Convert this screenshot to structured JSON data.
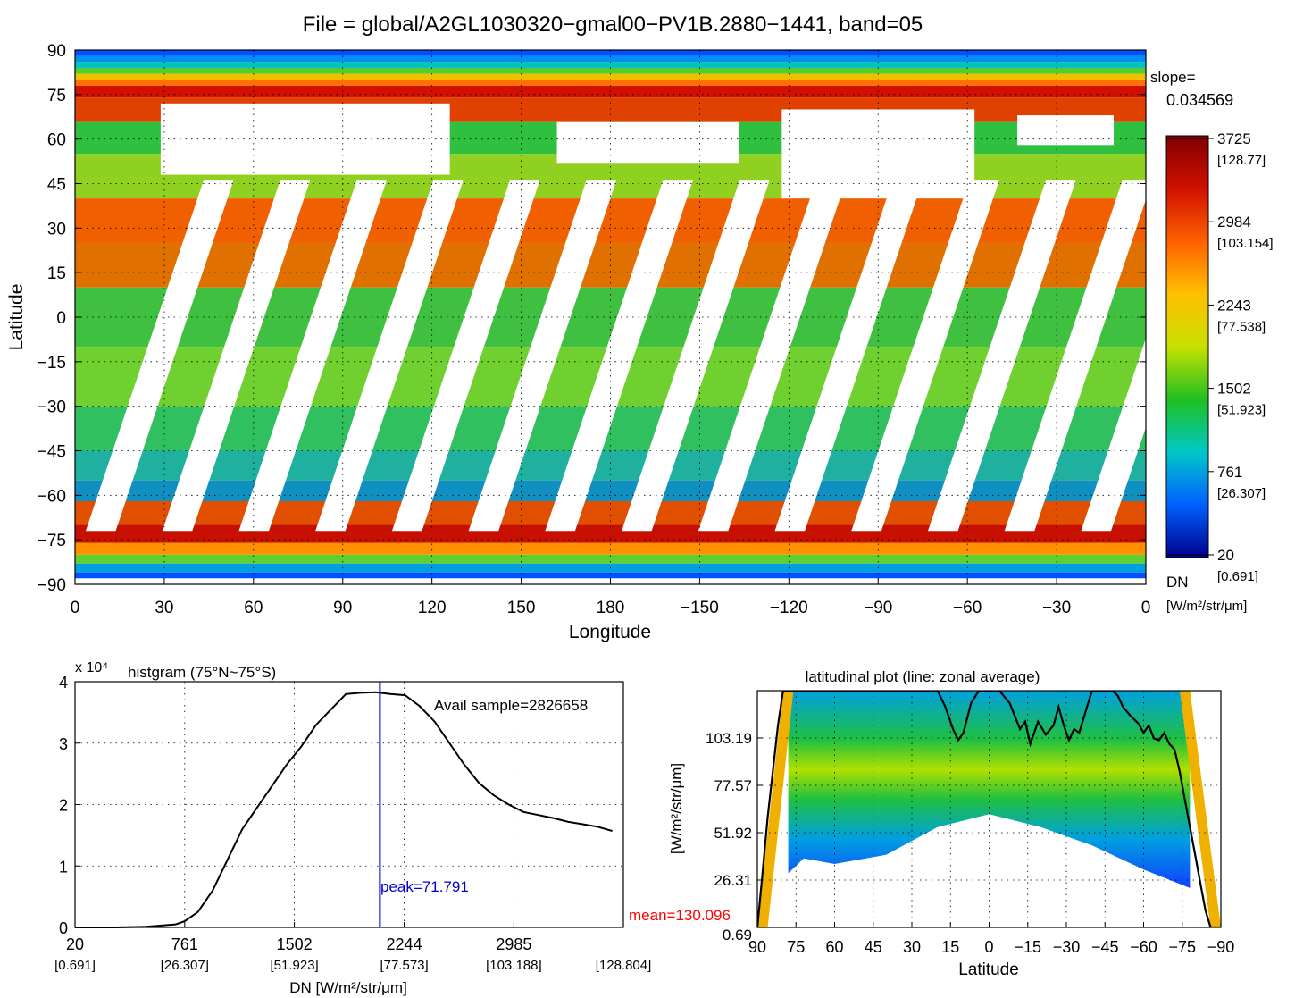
{
  "figure_title": "File = global/A2GL1030320−gmal00−PV1B.2880−1441, band=05",
  "chart_data": [
    {
      "type": "heatmap",
      "title": "File = global/A2GL1030320−gmal00−PV1B.2880−1441, band=05",
      "xlabel": "Longitude",
      "ylabel": "Latitude",
      "x_ticks": [
        "0",
        "30",
        "60",
        "90",
        "120",
        "150",
        "180",
        "−150",
        "−120",
        "−90",
        "−60",
        "−30",
        "0"
      ],
      "y_ticks": [
        "90",
        "75",
        "60",
        "45",
        "30",
        "15",
        "0",
        "−15",
        "−30",
        "−45",
        "−60",
        "−75",
        "−90"
      ],
      "grid": true,
      "slope_label": "slope=",
      "slope_value": "0.034569",
      "colorbar": {
        "ticks": [
          {
            "dn": "3725",
            "rad": "[128.77]"
          },
          {
            "dn": "2984",
            "rad": "[103.154]"
          },
          {
            "dn": "2243",
            "rad": "[77.538]"
          },
          {
            "dn": "1502",
            "rad": "[51.923]"
          },
          {
            "dn": "761",
            "rad": "[26.307]"
          },
          {
            "dn": "20",
            "rad": "[0.691]"
          }
        ],
        "label_dn": "DN",
        "label_units": "[W/m²/str/μm]",
        "colors": [
          "#00008f",
          "#0060ff",
          "#00c8c8",
          "#20c020",
          "#c8e000",
          "#ffc000",
          "#ff6000",
          "#d01000",
          "#800000"
        ]
      }
    },
    {
      "type": "line",
      "title": "histgram (75°N~75°S)",
      "multiplier_label": "x 10⁴",
      "xlabel": "DN [W/m²/str/μm]",
      "x_ticks": [
        {
          "dn": "20",
          "rad": "[0.691]"
        },
        {
          "dn": "761",
          "rad": "[26.307]"
        },
        {
          "dn": "1502",
          "rad": "[51.923]"
        },
        {
          "dn": "2244",
          "rad": "[77.573]"
        },
        {
          "dn": "2985",
          "rad": "[103.188]"
        },
        {
          "dn": "",
          "rad": "[128.804]"
        }
      ],
      "y_ticks": [
        "0",
        "1",
        "2",
        "3",
        "4"
      ],
      "xlim": [
        20,
        3725
      ],
      "ylim": [
        0,
        4
      ],
      "grid": true,
      "annotation_samples": "Avail sample=2826658",
      "annotation_peak": "peak=71.791",
      "annotation_mean": "mean=130.096",
      "peak_dn": 2080,
      "series": [
        {
          "x": [
            20,
            300,
            500,
            700,
            761,
            850,
            950,
            1050,
            1150,
            1250,
            1350,
            1450,
            1550,
            1650,
            1750,
            1850,
            1950,
            2050,
            2150,
            2250,
            2350,
            2450,
            2550,
            2650,
            2750,
            2850,
            2950,
            3050,
            3150,
            3250,
            3350,
            3450,
            3550,
            3650
          ],
          "y": [
            0,
            0,
            0.01,
            0.05,
            0.1,
            0.25,
            0.6,
            1.1,
            1.6,
            1.95,
            2.3,
            2.65,
            2.95,
            3.3,
            3.55,
            3.8,
            3.82,
            3.83,
            3.8,
            3.78,
            3.6,
            3.35,
            3.0,
            2.65,
            2.35,
            2.15,
            2.0,
            1.88,
            1.83,
            1.78,
            1.72,
            1.68,
            1.64,
            1.57
          ]
        }
      ]
    },
    {
      "type": "heatmap",
      "title": "latitudinal plot (line: zonal average)",
      "xlabel": "Latitude",
      "ylabel": "[W/m²/str/μm]",
      "x_ticks": [
        "90",
        "75",
        "60",
        "45",
        "30",
        "15",
        "0",
        "−15",
        "−30",
        "−45",
        "−60",
        "−75",
        "−90"
      ],
      "y_ticks": [
        "0.69",
        "26.31",
        "51.92",
        "77.57",
        "103.19"
      ],
      "xlim": [
        90,
        -90
      ],
      "ylim": [
        0.69,
        128.8
      ],
      "grid": true,
      "series": [
        {
          "name": "zonal average",
          "x": [
            90,
            88,
            86,
            84,
            82,
            80,
            78,
            76,
            74,
            72,
            70,
            68,
            66,
            64,
            62,
            60,
            58,
            55,
            52,
            50,
            47,
            44,
            40,
            35,
            30,
            25,
            20,
            17,
            14,
            12,
            10,
            7,
            4,
            0,
            -4,
            -8,
            -10,
            -12,
            -14,
            -16,
            -19,
            -22,
            -25,
            -27,
            -29,
            -31,
            -33,
            -35,
            -38,
            -40,
            -42,
            -45,
            -48,
            -50,
            -52,
            -55,
            -58,
            -60,
            -62,
            -64,
            -66,
            -68,
            -70,
            -72,
            -74,
            -76,
            -78,
            -80,
            -82,
            -84,
            -86,
            -88,
            -90
          ],
          "y": [
            0.7,
            30,
            60,
            85,
            110,
            128.8,
            128.8,
            128.8,
            128.8,
            128.8,
            128.8,
            128.8,
            128.8,
            128.8,
            128.8,
            128.8,
            128.8,
            128.8,
            128.8,
            128.8,
            128.8,
            128.8,
            128.8,
            128.8,
            128.8,
            128.8,
            128.8,
            120,
            108,
            102,
            106,
            122,
            128.8,
            128.8,
            128.8,
            122,
            115,
            108,
            112,
            100,
            112,
            105,
            110,
            120,
            110,
            102,
            108,
            106,
            120,
            128.8,
            128.8,
            128.8,
            128.8,
            126,
            120,
            115,
            111,
            106,
            110,
            103,
            102,
            106,
            100,
            97,
            85,
            70,
            55,
            40,
            25,
            10,
            0.7,
            0.7,
            0.7
          ]
        }
      ]
    }
  ]
}
